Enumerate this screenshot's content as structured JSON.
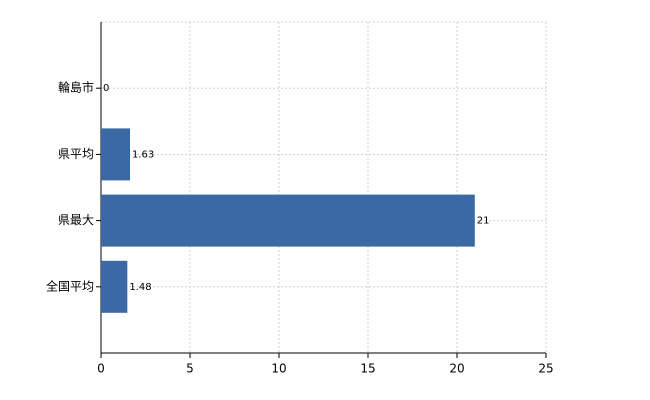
{
  "chart_data": {
    "type": "bar",
    "orientation": "horizontal",
    "categories": [
      "輪島市",
      "県平均",
      "県最大",
      "全国平均"
    ],
    "values": [
      0,
      1.63,
      21,
      1.48
    ],
    "color": "#3a69a4",
    "xlim": [
      0,
      25
    ],
    "xticks": [
      0,
      5,
      10,
      15,
      20,
      25
    ],
    "grid": true
  }
}
